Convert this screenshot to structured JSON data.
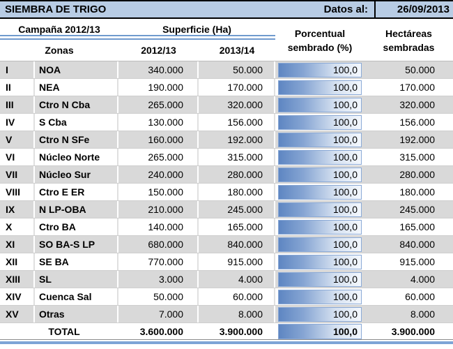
{
  "title_bar": {
    "title": "SIEMBRA DE TRIGO",
    "date_label": "Datos al:",
    "date_value": "26/09/2013"
  },
  "header": {
    "campaign": "Campaña 2012/13",
    "surface": "Superficie (Ha)",
    "zones": "Zonas",
    "season1": "2012/13",
    "season2": "2013/14",
    "percent_line1": "Porcentual",
    "percent_line2": "sembrado (%)",
    "hectares_line1": "Hectáreas",
    "hectares_line2": "sembradas"
  },
  "rows": [
    {
      "id": "I",
      "zone": "NOA",
      "s1": "340.000",
      "s2": "50.000",
      "pct": "100,0",
      "ha": "50.000"
    },
    {
      "id": "II",
      "zone": "NEA",
      "s1": "190.000",
      "s2": "170.000",
      "pct": "100,0",
      "ha": "170.000"
    },
    {
      "id": "III",
      "zone": "Ctro N Cba",
      "s1": "265.000",
      "s2": "320.000",
      "pct": "100,0",
      "ha": "320.000"
    },
    {
      "id": "IV",
      "zone": "S Cba",
      "s1": "130.000",
      "s2": "156.000",
      "pct": "100,0",
      "ha": "156.000"
    },
    {
      "id": "V",
      "zone": "Ctro N SFe",
      "s1": "160.000",
      "s2": "192.000",
      "pct": "100,0",
      "ha": "192.000"
    },
    {
      "id": "VI",
      "zone": "Núcleo Norte",
      "s1": "265.000",
      "s2": "315.000",
      "pct": "100,0",
      "ha": "315.000"
    },
    {
      "id": "VII",
      "zone": "Núcleo Sur",
      "s1": "240.000",
      "s2": "280.000",
      "pct": "100,0",
      "ha": "280.000"
    },
    {
      "id": "VIII",
      "zone": "Ctro E ER",
      "s1": "150.000",
      "s2": "180.000",
      "pct": "100,0",
      "ha": "180.000"
    },
    {
      "id": "IX",
      "zone": "N LP-OBA",
      "s1": "210.000",
      "s2": "245.000",
      "pct": "100,0",
      "ha": "245.000"
    },
    {
      "id": "X",
      "zone": "Ctro BA",
      "s1": "140.000",
      "s2": "165.000",
      "pct": "100,0",
      "ha": "165.000"
    },
    {
      "id": "XI",
      "zone": "SO BA-S LP",
      "s1": "680.000",
      "s2": "840.000",
      "pct": "100,0",
      "ha": "840.000"
    },
    {
      "id": "XII",
      "zone": "SE BA",
      "s1": "770.000",
      "s2": "915.000",
      "pct": "100,0",
      "ha": "915.000"
    },
    {
      "id": "XIII",
      "zone": "SL",
      "s1": "3.000",
      "s2": "4.000",
      "pct": "100,0",
      "ha": "4.000"
    },
    {
      "id": "XIV",
      "zone": "Cuenca Sal",
      "s1": "50.000",
      "s2": "60.000",
      "pct": "100,0",
      "ha": "60.000"
    },
    {
      "id": "XV",
      "zone": "Otras",
      "s1": "7.000",
      "s2": "8.000",
      "pct": "100,0",
      "ha": "8.000"
    }
  ],
  "total": {
    "label": "TOTAL",
    "s1": "3.600.000",
    "s2": "3.900.000",
    "pct": "100,0",
    "ha": "3.900.000"
  },
  "colors": {
    "title_bg": "#b8cce4",
    "stripe_bg": "#d9d9d9",
    "rule_blue": "#6f9ace",
    "bottom_rule_blue": "#7da4d6",
    "bar_border": "#8aa9d6",
    "bar_gradient_start": "#5e86c2",
    "bar_gradient_end": "#f4f8fd"
  },
  "chart_data": {
    "type": "table",
    "title": "SIEMBRA DE TRIGO",
    "date_label": "Datos al:",
    "date": "26/09/2013",
    "group_headers": [
      "Campaña 2012/13",
      "Superficie (Ha)"
    ],
    "columns": [
      "Zona ID",
      "Zonas",
      "Superficie 2012/13 (Ha)",
      "Superficie 2013/14 (Ha)",
      "Porcentual sembrado (%)",
      "Hectáreas sembradas"
    ],
    "rows": [
      [
        "I",
        "NOA",
        340000,
        50000,
        100.0,
        50000
      ],
      [
        "II",
        "NEA",
        190000,
        170000,
        100.0,
        170000
      ],
      [
        "III",
        "Ctro N Cba",
        265000,
        320000,
        100.0,
        320000
      ],
      [
        "IV",
        "S Cba",
        130000,
        156000,
        100.0,
        156000
      ],
      [
        "V",
        "Ctro N SFe",
        160000,
        192000,
        100.0,
        192000
      ],
      [
        "VI",
        "Núcleo Norte",
        265000,
        315000,
        100.0,
        315000
      ],
      [
        "VII",
        "Núcleo Sur",
        240000,
        280000,
        100.0,
        280000
      ],
      [
        "VIII",
        "Ctro E ER",
        150000,
        180000,
        100.0,
        180000
      ],
      [
        "IX",
        "N LP-OBA",
        210000,
        245000,
        100.0,
        245000
      ],
      [
        "X",
        "Ctro BA",
        140000,
        165000,
        100.0,
        165000
      ],
      [
        "XI",
        "SO BA-S LP",
        680000,
        840000,
        100.0,
        840000
      ],
      [
        "XII",
        "SE BA",
        770000,
        915000,
        100.0,
        915000
      ],
      [
        "XIII",
        "SL",
        3000,
        4000,
        100.0,
        4000
      ],
      [
        "XIV",
        "Cuenca Sal",
        50000,
        60000,
        100.0,
        60000
      ],
      [
        "XV",
        "Otras",
        7000,
        8000,
        100.0,
        8000
      ]
    ],
    "total_row": [
      "",
      "TOTAL",
      3600000,
      3900000,
      100.0,
      3900000
    ],
    "percent_column_style": "gradient-data-bar",
    "notes": "Percent column rendered as blue gradient data bars, all at 100,0"
  }
}
